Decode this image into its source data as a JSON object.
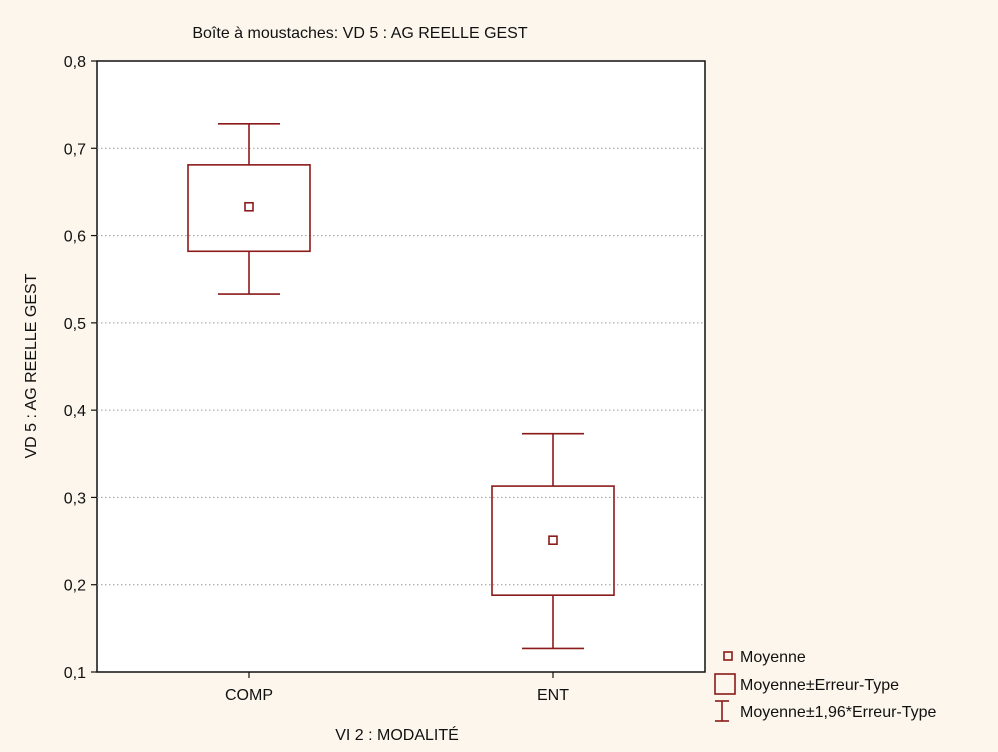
{
  "chart_data": {
    "type": "box",
    "title": "Boîte à moustaches: VD 5 : AG REELLE GEST",
    "xlabel": "VI 2 : MODALITÉ",
    "ylabel": "VD 5 : AG REELLE GEST",
    "ylim": [
      0.1,
      0.8
    ],
    "yticks": [
      0.1,
      0.2,
      0.3,
      0.4,
      0.5,
      0.6,
      0.7,
      0.8
    ],
    "ytick_labels": [
      "0,1",
      "0,2",
      "0,3",
      "0,4",
      "0,5",
      "0,6",
      "0,7",
      "0,8"
    ],
    "grid": true,
    "legend_position": "bottom-right, outside plot",
    "color": "#8b1a1a",
    "categories": [
      "COMP",
      "ENT"
    ],
    "series": [
      {
        "category": "COMP",
        "mean": 0.633,
        "se_low": 0.582,
        "se_high": 0.681,
        "ci_low": 0.533,
        "ci_high": 0.728
      },
      {
        "category": "ENT",
        "mean": 0.251,
        "se_low": 0.188,
        "se_high": 0.313,
        "ci_low": 0.127,
        "ci_high": 0.373
      }
    ],
    "legend": [
      {
        "marker": "small-square",
        "label": "Moyenne"
      },
      {
        "marker": "box",
        "label": "Moyenne±Erreur-Type"
      },
      {
        "marker": "whisker",
        "label": "Moyenne±1,96*Erreur-Type"
      }
    ]
  }
}
